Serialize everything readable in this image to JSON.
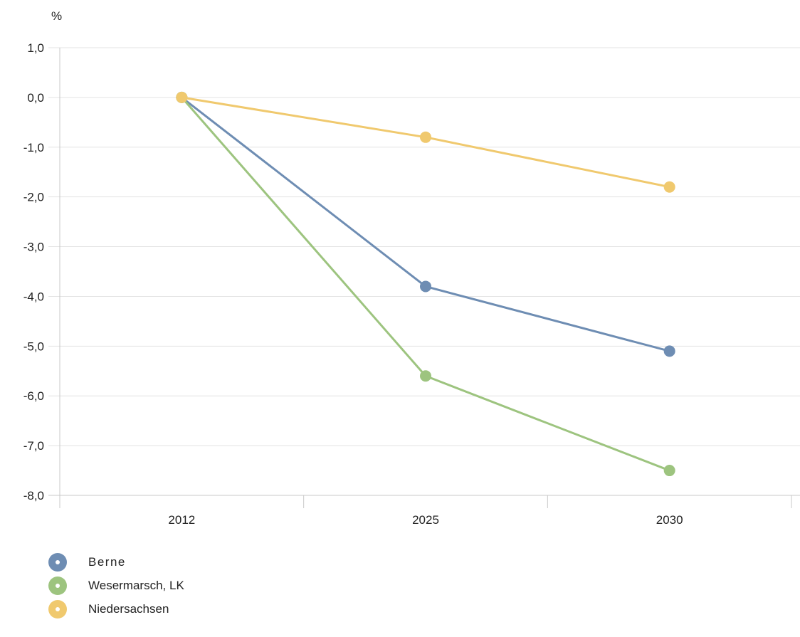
{
  "chart_data": {
    "type": "line",
    "unit_label": "%",
    "categories": [
      "2012",
      "2025",
      "2030"
    ],
    "y_ticks": [
      "1,0",
      "0,0",
      "-1,0",
      "-2,0",
      "-3,0",
      "-4,0",
      "-5,0",
      "-6,0",
      "-7,0",
      "-8,0"
    ],
    "ylim": [
      -8,
      1
    ],
    "grid": true,
    "legend_position": "bottom-left",
    "series": [
      {
        "name": "Berne",
        "color": "#6e8db3",
        "values": [
          0,
          -3.8,
          -5.1
        ]
      },
      {
        "name": "Wesermarsch, LK",
        "color": "#9dc47f",
        "values": [
          0,
          -5.6,
          -7.5
        ]
      },
      {
        "name": "Niedersachsen",
        "color": "#f0c96e",
        "values": [
          0,
          -0.8,
          -1.8
        ]
      }
    ]
  }
}
